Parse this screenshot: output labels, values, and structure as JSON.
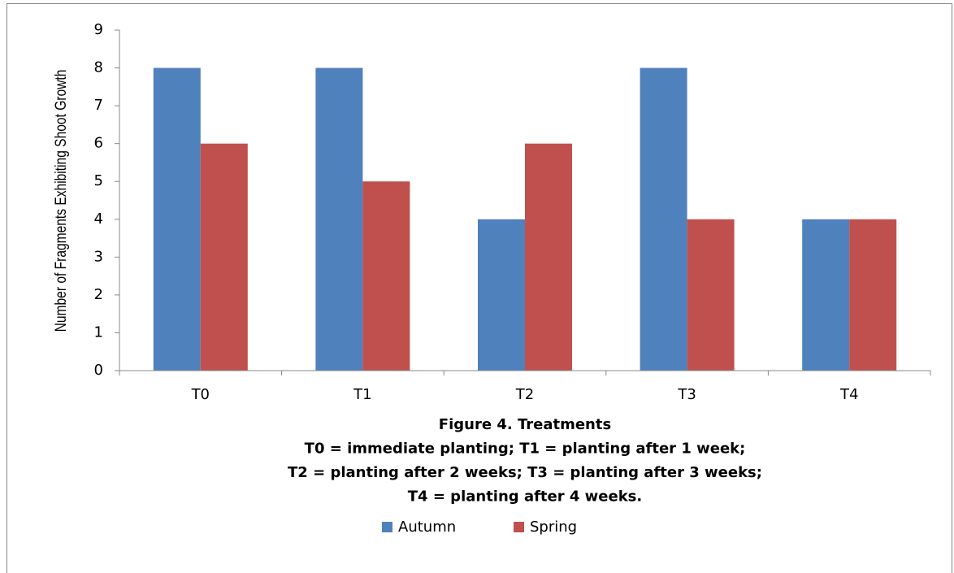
{
  "chart_data": {
    "type": "bar",
    "ylabel": "Number of Fragments Exhibiting Shoot Growth",
    "xlabel": [
      "Figure 4. Treatments",
      "T0 = immediate planting; T1 = planting after 1 week;",
      "T2 = planting after 2 weeks; T3 = planting after 3 weeks;",
      "T4 = planting after 4 weeks."
    ],
    "categories": [
      "T0",
      "T1",
      "T2",
      "T3",
      "T4"
    ],
    "series": [
      {
        "name": "Autumn",
        "color": "#4f81bd",
        "values": [
          8,
          8,
          4,
          8,
          4
        ]
      },
      {
        "name": "Spring",
        "color": "#c0504d",
        "values": [
          6,
          5,
          6,
          4,
          4
        ]
      }
    ],
    "ylim": [
      0,
      9
    ],
    "yticks": [
      0,
      1,
      2,
      3,
      4,
      5,
      6,
      7,
      8,
      9
    ],
    "grid": false,
    "legend": "bottom"
  }
}
